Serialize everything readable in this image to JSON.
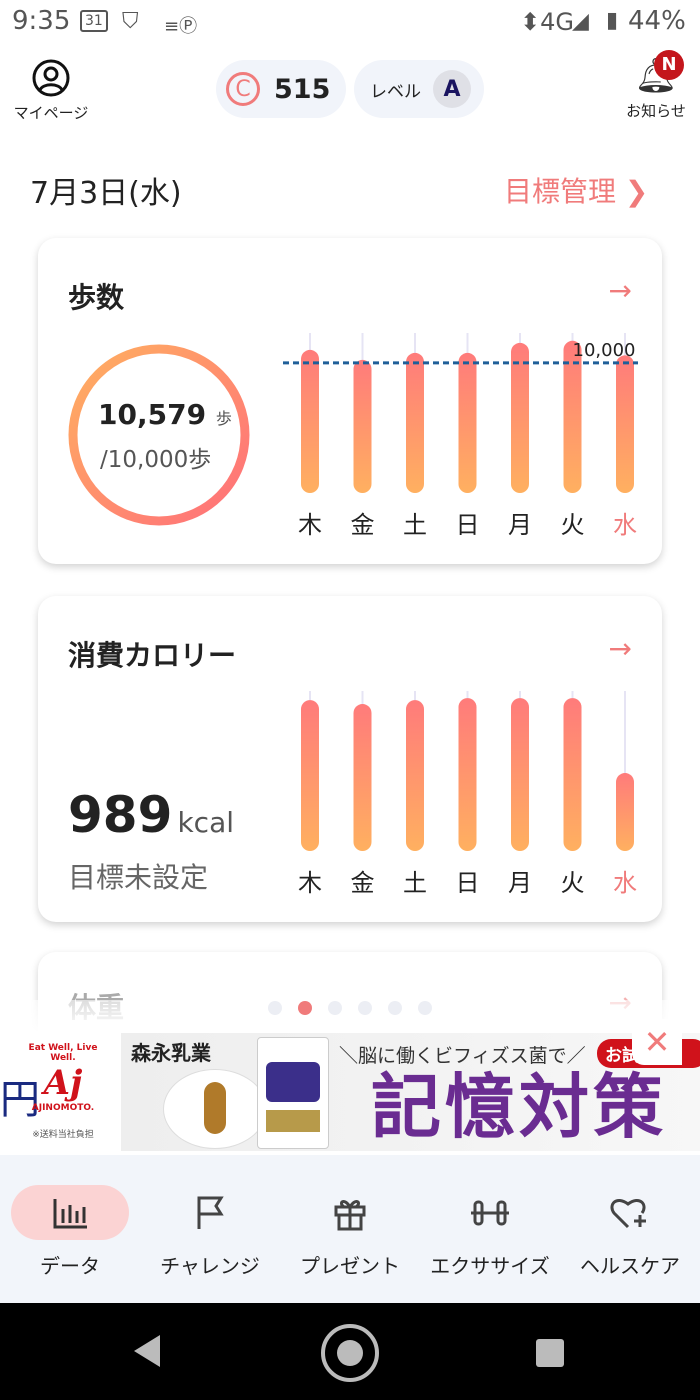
{
  "status_bar": {
    "time": "9:35",
    "calendar_icon_text": "31",
    "network": "4G",
    "battery": "44%"
  },
  "header": {
    "mypage_label": "マイページ",
    "coins": "515",
    "level_label": "レベル",
    "level_value": "A",
    "notice_label": "お知らせ",
    "notice_badge": "N"
  },
  "date": "7月3日(水)",
  "goal_link": "目標管理",
  "colors": {
    "accent": "#f07b7b",
    "bar_top": "#ff7b7b",
    "bar_bottom": "#ffb060",
    "goal_line": "#1f5f99"
  },
  "steps_card": {
    "title": "歩数",
    "value": "10,579",
    "unit": "歩",
    "goal": "/10,000歩",
    "progress": 1.0,
    "chart_data": {
      "type": "bar",
      "categories": [
        "木",
        "金",
        "土",
        "日",
        "月",
        "火",
        "水"
      ],
      "values": [
        11000,
        10230,
        10770,
        10770,
        11540,
        11700,
        10579
      ],
      "goal_line": 10000,
      "goal_label": "10,000",
      "ylim": [
        0,
        12300
      ],
      "highlight": "水"
    }
  },
  "calorie_card": {
    "title": "消費カロリー",
    "value": "989",
    "unit": "kcal",
    "goal": "目標未設定",
    "chart_data": {
      "type": "bar",
      "categories": [
        "木",
        "金",
        "土",
        "日",
        "月",
        "火",
        "水"
      ],
      "values": [
        1915,
        1865,
        1915,
        1940,
        1940,
        1940,
        989
      ],
      "ylim": [
        0,
        2030
      ],
      "highlight": "水"
    }
  },
  "weight_card": {
    "title": "体重"
  },
  "pager": {
    "count": 6,
    "active": 1
  },
  "ad": {
    "left_brand": "AJINOMOTO.",
    "left_tagline": "Eat Well, Live Well.",
    "left_note": "※送料当社負担",
    "brand": "森永乳業",
    "headline": "＼脳に働くビフィズス菌で／",
    "product": "記憶対策",
    "offer": "お試し"
  },
  "nav": [
    {
      "label": "データ",
      "icon": "bar-chart-icon",
      "active": true
    },
    {
      "label": "チャレンジ",
      "icon": "flag-icon"
    },
    {
      "label": "プレゼント",
      "icon": "gift-icon"
    },
    {
      "label": "エクササイズ",
      "icon": "dumbbell-icon"
    },
    {
      "label": "ヘルスケア",
      "icon": "heart-plus-icon"
    }
  ]
}
